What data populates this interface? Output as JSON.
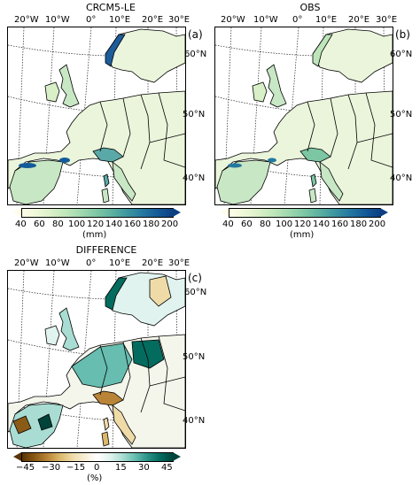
{
  "panels": [
    {
      "title": "CRCM5-LE",
      "tag": "(a)"
    },
    {
      "title": "OBS",
      "tag": "(b)"
    },
    {
      "title": "DIFFERENCE",
      "tag": "(c)"
    }
  ],
  "lon_labels": [
    "20°W",
    "10°W",
    "0°",
    "10°E",
    "20°E",
    "30°E"
  ],
  "lat_labels": [
    "60°N",
    "50°N",
    "40°N"
  ],
  "colorbars": {
    "precip": {
      "ticks": [
        "40",
        "60",
        "80",
        "100",
        "120",
        "140",
        "160",
        "180",
        "200"
      ],
      "unit": "(mm)",
      "colors": [
        "#fffde7",
        "#eef8d8",
        "#d8efc7",
        "#bde5b9",
        "#9dd7ad",
        "#7cc6a4",
        "#5bb0a0",
        "#3c95a0",
        "#2478a0",
        "#135a98",
        "#0b3f82"
      ]
    },
    "difference": {
      "ticks": [
        "−45",
        "−30",
        "−15",
        "0",
        "15",
        "30",
        "45"
      ],
      "unit": "(%)",
      "colors": [
        "#5a3404",
        "#8a5a17",
        "#b98438",
        "#dbb86a",
        "#efdba8",
        "#f7eed8",
        "#ffffff",
        "#e0f3ef",
        "#a9ddd3",
        "#66bdb0",
        "#2a9187",
        "#046b5f",
        "#00433a"
      ]
    }
  },
  "map_colors": {
    "land_light": "#eaf5dc",
    "land_mid": "#c8e7c4",
    "land_high": "#5aa9a8",
    "land_peak": "#1e5c9a",
    "diff_pos": "#2a9187",
    "diff_neg": "#c48e45",
    "diff_neutral": "#f4f6ec"
  }
}
